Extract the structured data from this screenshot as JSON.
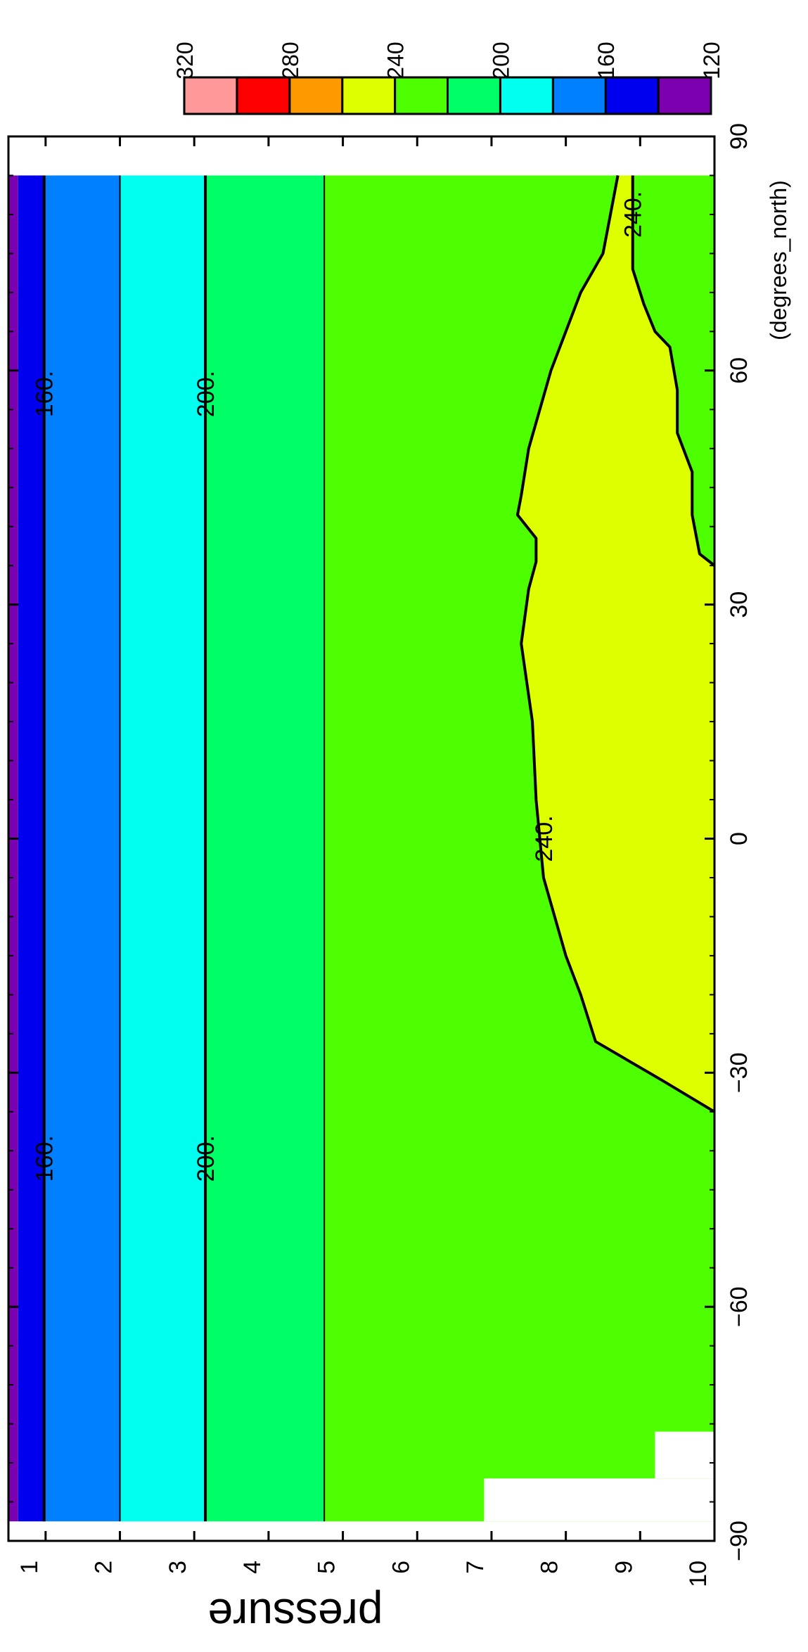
{
  "chart_data": {
    "type": "heatmap",
    "orientation": "rotated 90 degrees clockwise",
    "xlabel": "(degrees_north)",
    "ylabel": "pressure",
    "x_axis": {
      "range": [
        -90,
        90
      ],
      "ticks": [
        -90,
        -60,
        -30,
        0,
        30,
        60,
        90
      ],
      "tick_labels": [
        "−90",
        "−60",
        "−30",
        "0",
        "30",
        "60",
        "90"
      ]
    },
    "y_axis": {
      "range": [
        0.5,
        10
      ],
      "ticks": [
        1,
        2,
        3,
        4,
        5,
        6,
        7,
        8,
        9,
        10
      ],
      "tick_labels": [
        "1",
        "2",
        "3",
        "4",
        "5",
        "6",
        "7",
        "8",
        "9",
        "10"
      ]
    },
    "data_extent": {
      "lat": [
        -87.5,
        85
      ],
      "pressure": [
        0.5,
        10
      ]
    },
    "colorbar": {
      "levels": [
        120,
        140,
        160,
        180,
        200,
        220,
        240,
        260,
        280,
        300,
        320
      ],
      "tick_values": [
        120,
        160,
        200,
        240,
        280,
        320
      ],
      "tick_labels": [
        "120",
        "160",
        "200",
        "240",
        "280",
        "320"
      ],
      "colors": [
        "#7b00b0",
        "#0000ee",
        "#0080ff",
        "#00ffee",
        "#00ff66",
        "#4dff00",
        "#ddff00",
        "#ff9900",
        "#ff0000",
        "#ff9999"
      ]
    },
    "bands": [
      {
        "range": [
          120,
          140
        ],
        "color": "#7b00b0",
        "pressure_from": 0.5,
        "pressure_to": 0.63
      },
      {
        "range": [
          140,
          160
        ],
        "color": "#0000ee",
        "pressure_from": 0.63,
        "pressure_to": 0.98
      },
      {
        "range": [
          160,
          180
        ],
        "color": "#0080ff",
        "pressure_from": 0.98,
        "pressure_to": 2.0
      },
      {
        "range": [
          180,
          200
        ],
        "color": "#00ffee",
        "pressure_from": 2.0,
        "pressure_to": 3.15
      },
      {
        "range": [
          200,
          220
        ],
        "color": "#00ff66",
        "pressure_from": 3.15,
        "pressure_to": 4.75
      },
      {
        "range": [
          220,
          240
        ],
        "color": "#4dff00",
        "pressure_from": 4.75,
        "pressure_to": 10
      }
    ],
    "contours": [
      {
        "level": 160,
        "label": "160.",
        "pressure": 0.98,
        "label_lat": [
          -41,
          57
        ]
      },
      {
        "level": 180,
        "pressure": 2.0
      },
      {
        "level": 200,
        "label": "200.",
        "pressure": 3.15,
        "label_lat": [
          -41,
          57
        ]
      },
      {
        "level": 220,
        "pressure": 4.75
      },
      {
        "level": 240,
        "label": "240.",
        "label_lat": [
          0,
          80
        ],
        "region": "values above 240 between -35°N and 85°N at pressures 7.7–10",
        "points": [
          [
            -35,
            10
          ],
          [
            -31,
            9.3
          ],
          [
            -26,
            8.4
          ],
          [
            -20,
            8.2
          ],
          [
            -15,
            8.0
          ],
          [
            -5,
            7.7
          ],
          [
            5,
            7.6
          ],
          [
            15,
            7.55
          ],
          [
            25,
            7.4
          ],
          [
            32,
            7.5
          ],
          [
            35.5,
            7.6
          ],
          [
            38.5,
            7.6
          ],
          [
            41.5,
            7.35
          ],
          [
            44,
            7.4
          ],
          [
            50,
            7.5
          ],
          [
            60,
            7.8
          ],
          [
            70,
            8.2
          ],
          [
            75,
            8.5
          ],
          [
            80,
            8.6
          ],
          [
            85,
            8.7
          ]
        ],
        "inner_edge": [
          [
            35,
            10
          ],
          [
            36.5,
            9.8
          ],
          [
            41.5,
            9.7
          ],
          [
            47,
            9.7
          ],
          [
            52,
            9.5
          ],
          [
            57.5,
            9.5
          ],
          [
            63,
            9.4
          ],
          [
            65,
            9.2
          ],
          [
            68.5,
            9.05
          ],
          [
            70,
            9.0
          ],
          [
            73,
            8.9
          ],
          [
            85,
            8.9
          ]
        ]
      }
    ],
    "missing_regions": [
      {
        "lat": [
          -87.5,
          -82
        ],
        "pressure": [
          6.9,
          10
        ]
      },
      {
        "lat": [
          -82,
          -76
        ],
        "pressure": [
          9.2,
          10
        ]
      }
    ]
  }
}
